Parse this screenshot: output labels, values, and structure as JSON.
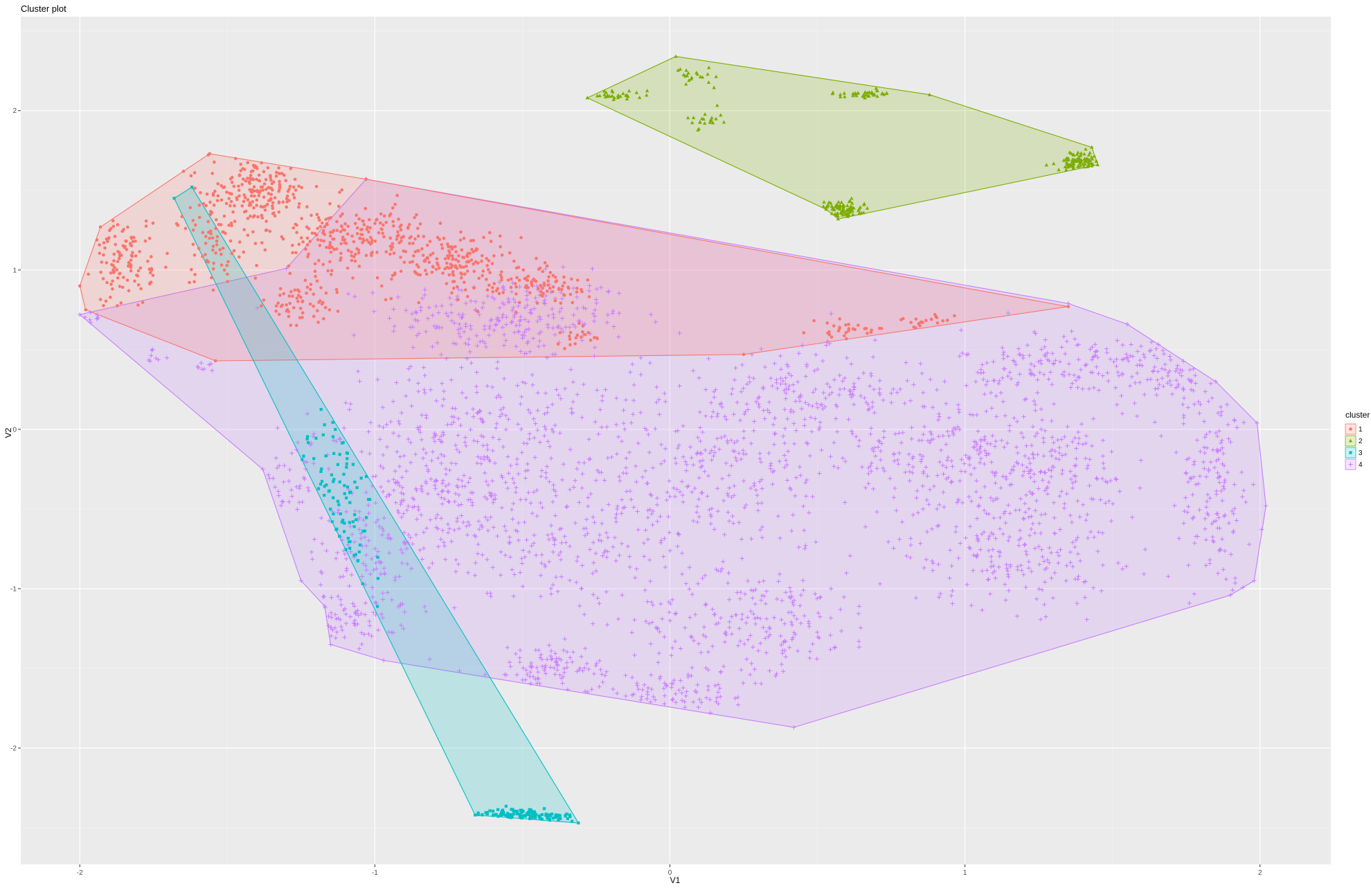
{
  "chart_data": {
    "type": "scatter",
    "title": "Cluster plot",
    "xlabel": "V1",
    "ylabel": "V2",
    "xlim": [
      -2.2,
      2.24
    ],
    "ylim": [
      -2.73,
      2.59
    ],
    "xticks": [
      -2,
      -1,
      0,
      1,
      2
    ],
    "yticks": [
      -2,
      -1,
      0,
      1,
      2
    ],
    "xtick_labels": [
      "-2",
      "-1",
      "0",
      "1",
      "2"
    ],
    "ytick_labels": [
      "-2",
      "-1",
      "0",
      "1",
      "2"
    ],
    "grid": true,
    "legend": {
      "title": "cluster",
      "position": "right"
    },
    "colors": {
      "1": "#F8766D",
      "2": "#7CAE00",
      "3": "#00BFC4",
      "4": "#C77CFF"
    },
    "series": [
      {
        "name": "1",
        "marker": "circle",
        "color": "#F8766D",
        "hull": [
          [
            -2.0,
            0.9
          ],
          [
            -1.93,
            1.27
          ],
          [
            -1.56,
            1.73
          ],
          [
            -1.03,
            1.57
          ],
          [
            1.35,
            0.77
          ],
          [
            0.25,
            0.47
          ],
          [
            -1.54,
            0.43
          ],
          [
            -1.98,
            0.75
          ]
        ],
        "blobs": [
          {
            "cx": -1.4,
            "cy": 1.5,
            "rx": 0.14,
            "ry": 0.16,
            "n": 180
          },
          {
            "cx": -1.08,
            "cy": 1.2,
            "rx": 0.22,
            "ry": 0.18,
            "n": 230
          },
          {
            "cx": -0.72,
            "cy": 1.05,
            "rx": 0.17,
            "ry": 0.16,
            "n": 160
          },
          {
            "cx": -0.42,
            "cy": 0.9,
            "rx": 0.12,
            "ry": 0.1,
            "n": 80
          },
          {
            "cx": -1.85,
            "cy": 1.05,
            "rx": 0.08,
            "ry": 0.25,
            "n": 110
          },
          {
            "cx": -1.55,
            "cy": 1.18,
            "rx": 0.1,
            "ry": 0.22,
            "n": 70
          },
          {
            "cx": -1.25,
            "cy": 0.78,
            "rx": 0.1,
            "ry": 0.12,
            "n": 60
          },
          {
            "cx": -0.32,
            "cy": 0.58,
            "rx": 0.06,
            "ry": 0.06,
            "n": 20
          },
          {
            "cx": 0.62,
            "cy": 0.62,
            "rx": 0.12,
            "ry": 0.05,
            "n": 30
          },
          {
            "cx": 0.85,
            "cy": 0.67,
            "rx": 0.1,
            "ry": 0.04,
            "n": 20
          }
        ]
      },
      {
        "name": "2",
        "marker": "triangle",
        "color": "#7CAE00",
        "hull": [
          [
            -0.28,
            2.08
          ],
          [
            0.02,
            2.34
          ],
          [
            0.88,
            2.1
          ],
          [
            1.43,
            1.77
          ],
          [
            1.45,
            1.66
          ],
          [
            0.57,
            1.32
          ],
          [
            0.53,
            1.38
          ]
        ],
        "blobs": [
          {
            "cx": 1.4,
            "cy": 1.68,
            "rx": 0.07,
            "ry": 0.05,
            "n": 90
          },
          {
            "cx": 0.58,
            "cy": 1.38,
            "rx": 0.06,
            "ry": 0.05,
            "n": 80
          },
          {
            "cx": 0.66,
            "cy": 2.1,
            "rx": 0.09,
            "ry": 0.02,
            "n": 40
          },
          {
            "cx": -0.18,
            "cy": 2.1,
            "rx": 0.1,
            "ry": 0.03,
            "n": 30
          },
          {
            "cx": 0.1,
            "cy": 2.2,
            "rx": 0.07,
            "ry": 0.07,
            "n": 20
          },
          {
            "cx": 0.12,
            "cy": 1.95,
            "rx": 0.05,
            "ry": 0.05,
            "n": 20
          }
        ]
      },
      {
        "name": "3",
        "marker": "square",
        "color": "#00BFC4",
        "hull": [
          [
            -1.68,
            1.45
          ],
          [
            -1.62,
            1.52
          ],
          [
            -0.31,
            -2.47
          ],
          [
            -0.66,
            -2.42
          ]
        ],
        "blobs": [
          {
            "cx": -0.5,
            "cy": -2.43,
            "rx": 0.16,
            "ry": 0.04,
            "n": 120
          },
          {
            "cx": -1.15,
            "cy": -0.55,
            "rx": 0.14,
            "ry": 0.6,
            "n": 90
          }
        ]
      },
      {
        "name": "4",
        "marker": "plus",
        "color": "#C77CFF",
        "hull": [
          [
            -2.0,
            0.72
          ],
          [
            -1.3,
            1.01
          ],
          [
            -1.03,
            1.57
          ],
          [
            1.35,
            0.79
          ],
          [
            1.55,
            0.66
          ],
          [
            1.85,
            0.3
          ],
          [
            1.99,
            0.04
          ],
          [
            2.02,
            -0.48
          ],
          [
            1.98,
            -0.95
          ],
          [
            1.9,
            -1.04
          ],
          [
            0.42,
            -1.87
          ],
          [
            -0.97,
            -1.45
          ],
          [
            -1.15,
            -1.35
          ],
          [
            -1.17,
            -1.11
          ],
          [
            -1.25,
            -0.95
          ],
          [
            -1.38,
            -0.25
          ]
        ],
        "blobs": [
          {
            "cx": -0.55,
            "cy": 0.7,
            "rx": 0.35,
            "ry": 0.22,
            "n": 260
          },
          {
            "cx": -0.65,
            "cy": 0.0,
            "rx": 0.45,
            "ry": 0.35,
            "n": 260
          },
          {
            "cx": -0.35,
            "cy": -0.7,
            "rx": 0.45,
            "ry": 0.35,
            "n": 240
          },
          {
            "cx": 0.15,
            "cy": -0.2,
            "rx": 0.4,
            "ry": 0.45,
            "n": 280
          },
          {
            "cx": 0.3,
            "cy": -1.2,
            "rx": 0.35,
            "ry": 0.25,
            "n": 200
          },
          {
            "cx": 0.5,
            "cy": 0.25,
            "rx": 0.3,
            "ry": 0.2,
            "n": 160
          },
          {
            "cx": 0.95,
            "cy": -0.15,
            "rx": 0.3,
            "ry": 0.35,
            "n": 220
          },
          {
            "cx": 1.15,
            "cy": -0.75,
            "rx": 0.3,
            "ry": 0.3,
            "n": 200
          },
          {
            "cx": 1.35,
            "cy": 0.4,
            "rx": 0.3,
            "ry": 0.2,
            "n": 160
          },
          {
            "cx": 1.3,
            "cy": -0.25,
            "rx": 0.25,
            "ry": 0.3,
            "n": 150
          },
          {
            "cx": 1.85,
            "cy": -0.35,
            "rx": 0.1,
            "ry": 0.55,
            "n": 150
          },
          {
            "cx": 1.7,
            "cy": 0.35,
            "rx": 0.15,
            "ry": 0.2,
            "n": 70
          },
          {
            "cx": -1.0,
            "cy": -0.75,
            "rx": 0.25,
            "ry": 0.35,
            "n": 140
          },
          {
            "cx": -1.1,
            "cy": -1.2,
            "rx": 0.15,
            "ry": 0.12,
            "n": 60
          },
          {
            "cx": -0.4,
            "cy": -1.5,
            "rx": 0.25,
            "ry": 0.12,
            "n": 100
          },
          {
            "cx": 0.05,
            "cy": -1.65,
            "rx": 0.25,
            "ry": 0.1,
            "n": 80
          },
          {
            "cx": -0.75,
            "cy": -0.4,
            "rx": 0.25,
            "ry": 0.2,
            "n": 120
          },
          {
            "cx": -1.3,
            "cy": -0.35,
            "rx": 0.08,
            "ry": 0.15,
            "n": 30
          },
          {
            "cx": -1.75,
            "cy": 0.45,
            "rx": 0.05,
            "ry": 0.04,
            "n": 8
          },
          {
            "cx": -1.58,
            "cy": 0.38,
            "rx": 0.04,
            "ry": 0.03,
            "n": 8
          },
          {
            "cx": -1.96,
            "cy": 0.7,
            "rx": 0.03,
            "ry": 0.03,
            "n": 8
          }
        ]
      }
    ]
  }
}
